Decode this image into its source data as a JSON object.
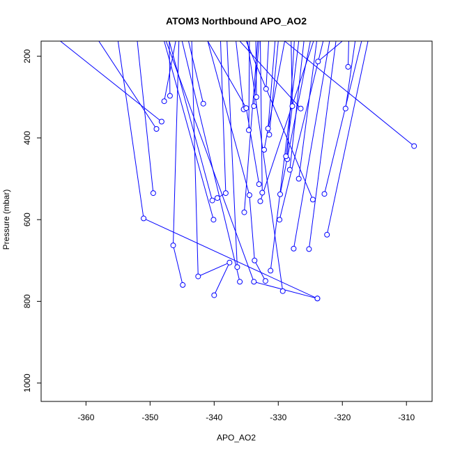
{
  "chart_data": {
    "type": "line",
    "title": "ATOM3 Northbound APO_AO2",
    "xlabel": "APO_AO2",
    "ylabel": "Pressure (mbar)",
    "xlim": [
      -367,
      -306
    ],
    "ylim": [
      1045,
      163
    ],
    "y_inverted": true,
    "xticks": [
      -360,
      -350,
      -340,
      -330,
      -320,
      -310
    ],
    "yticks": [
      200,
      400,
      600,
      800,
      1000
    ],
    "grid": false,
    "legend": "none",
    "line_color": "#0000ff",
    "marker": "open-circle",
    "series": [
      {
        "x": [
          -352.0,
          -349.5
        ],
        "y": [
          163,
          535
        ]
      },
      {
        "x": [
          -358.0,
          -349.0
        ],
        "y": [
          163,
          378
        ]
      },
      {
        "x": [
          -364.0,
          -348.2
        ],
        "y": [
          163,
          360
        ]
      },
      {
        "x": [
          -355.0,
          -351.0,
          -323.9
        ],
        "y": [
          163,
          597,
          793
        ]
      },
      {
        "x": [
          -346.0,
          -347.8
        ],
        "y": [
          163,
          310
        ]
      },
      {
        "x": [
          -347.0,
          -346.9
        ],
        "y": [
          163,
          297
        ]
      },
      {
        "x": [
          -344.0,
          -341.7
        ],
        "y": [
          163,
          316
        ]
      },
      {
        "x": [
          -345.5,
          -346.4,
          -344.9
        ],
        "y": [
          163,
          663,
          760
        ]
      },
      {
        "x": [
          -347.0,
          -340.3
        ],
        "y": [
          163,
          553
        ]
      },
      {
        "x": [
          -347.8,
          -340.1
        ],
        "y": [
          163,
          600
        ]
      },
      {
        "x": [
          -339.0,
          -338.2,
          -339.5
        ],
        "y": [
          163,
          535,
          547
        ]
      },
      {
        "x": [
          -338.0,
          -336.4
        ],
        "y": [
          163,
          716
        ]
      },
      {
        "x": [
          -336.6,
          -335.4
        ],
        "y": [
          163,
          330
        ]
      },
      {
        "x": [
          -334.5,
          -334.6
        ],
        "y": [
          163,
          381
        ]
      },
      {
        "x": [
          -333.5,
          -333.4
        ],
        "y": [
          163,
          300
        ]
      },
      {
        "x": [
          -333.0,
          -333.8
        ],
        "y": [
          163,
          322
        ]
      },
      {
        "x": [
          -333.2,
          -335.3
        ],
        "y": [
          163,
          582
        ]
      },
      {
        "x": [
          -332.8,
          -332.5
        ],
        "y": [
          163,
          534
        ]
      },
      {
        "x": [
          -331.5,
          -331.9
        ],
        "y": [
          163,
          280
        ]
      },
      {
        "x": [
          -330.5,
          -331.6
        ],
        "y": [
          163,
          377
        ]
      },
      {
        "x": [
          -330.0,
          -331.4
        ],
        "y": [
          163,
          392
        ]
      },
      {
        "x": [
          -329.0,
          -332.2
        ],
        "y": [
          163,
          429
        ]
      },
      {
        "x": [
          -327.5,
          -328.6
        ],
        "y": [
          163,
          452
        ]
      },
      {
        "x": [
          -326.0,
          -328.2
        ],
        "y": [
          163,
          478
        ]
      },
      {
        "x": [
          -325.0,
          -329.7
        ],
        "y": [
          163,
          538
        ]
      },
      {
        "x": [
          -324.0,
          -326.8
        ],
        "y": [
          163,
          500
        ]
      },
      {
        "x": [
          -323.0,
          -329.8
        ],
        "y": [
          163,
          600
        ]
      },
      {
        "x": [
          -322.0,
          -327.6
        ],
        "y": [
          163,
          671
        ]
      },
      {
        "x": [
          -321.0,
          -325.2
        ],
        "y": [
          163,
          672
        ]
      },
      {
        "x": [
          -320.0,
          -323.8
        ],
        "y": [
          163,
          213
        ]
      },
      {
        "x": [
          -319.0,
          -319.1
        ],
        "y": [
          163,
          226
        ]
      },
      {
        "x": [
          -318.0,
          -319.5
        ],
        "y": [
          163,
          328
        ]
      },
      {
        "x": [
          -317.0,
          -322.8
        ],
        "y": [
          163,
          537
        ]
      },
      {
        "x": [
          -316.0,
          -322.4
        ],
        "y": [
          163,
          637
        ]
      },
      {
        "x": [
          -329.0,
          -308.8
        ],
        "y": [
          163,
          420
        ]
      },
      {
        "x": [
          -335.0,
          -324.6
        ],
        "y": [
          163,
          551
        ]
      },
      {
        "x": [
          -343.5,
          -342.5,
          -337.6,
          -340.0
        ],
        "y": [
          163,
          739,
          705,
          785
        ]
      },
      {
        "x": [
          -341.0,
          -334.5,
          -333.7,
          -332.0
        ],
        "y": [
          163,
          540,
          700,
          750
        ]
      },
      {
        "x": [
          -345.0,
          -336.0
        ],
        "y": [
          163,
          752
        ]
      },
      {
        "x": [
          -347.5,
          -333.8,
          -323.9
        ],
        "y": [
          163,
          752,
          793
        ]
      },
      {
        "x": [
          -334.8,
          -329.3
        ],
        "y": [
          163,
          775
        ]
      },
      {
        "x": [
          -326.8,
          -331.2
        ],
        "y": [
          163,
          725
        ]
      },
      {
        "x": [
          -328.0,
          -327.8,
          -328.8
        ],
        "y": [
          163,
          322,
          445
        ]
      },
      {
        "x": [
          -336.0,
          -326.5
        ],
        "y": [
          163,
          328
        ]
      },
      {
        "x": [
          -341.0,
          -335.0,
          -333.0
        ],
        "y": [
          163,
          327,
          513
        ]
      },
      {
        "x": [
          -324.5,
          -332.8
        ],
        "y": [
          163,
          555
        ]
      }
    ]
  }
}
